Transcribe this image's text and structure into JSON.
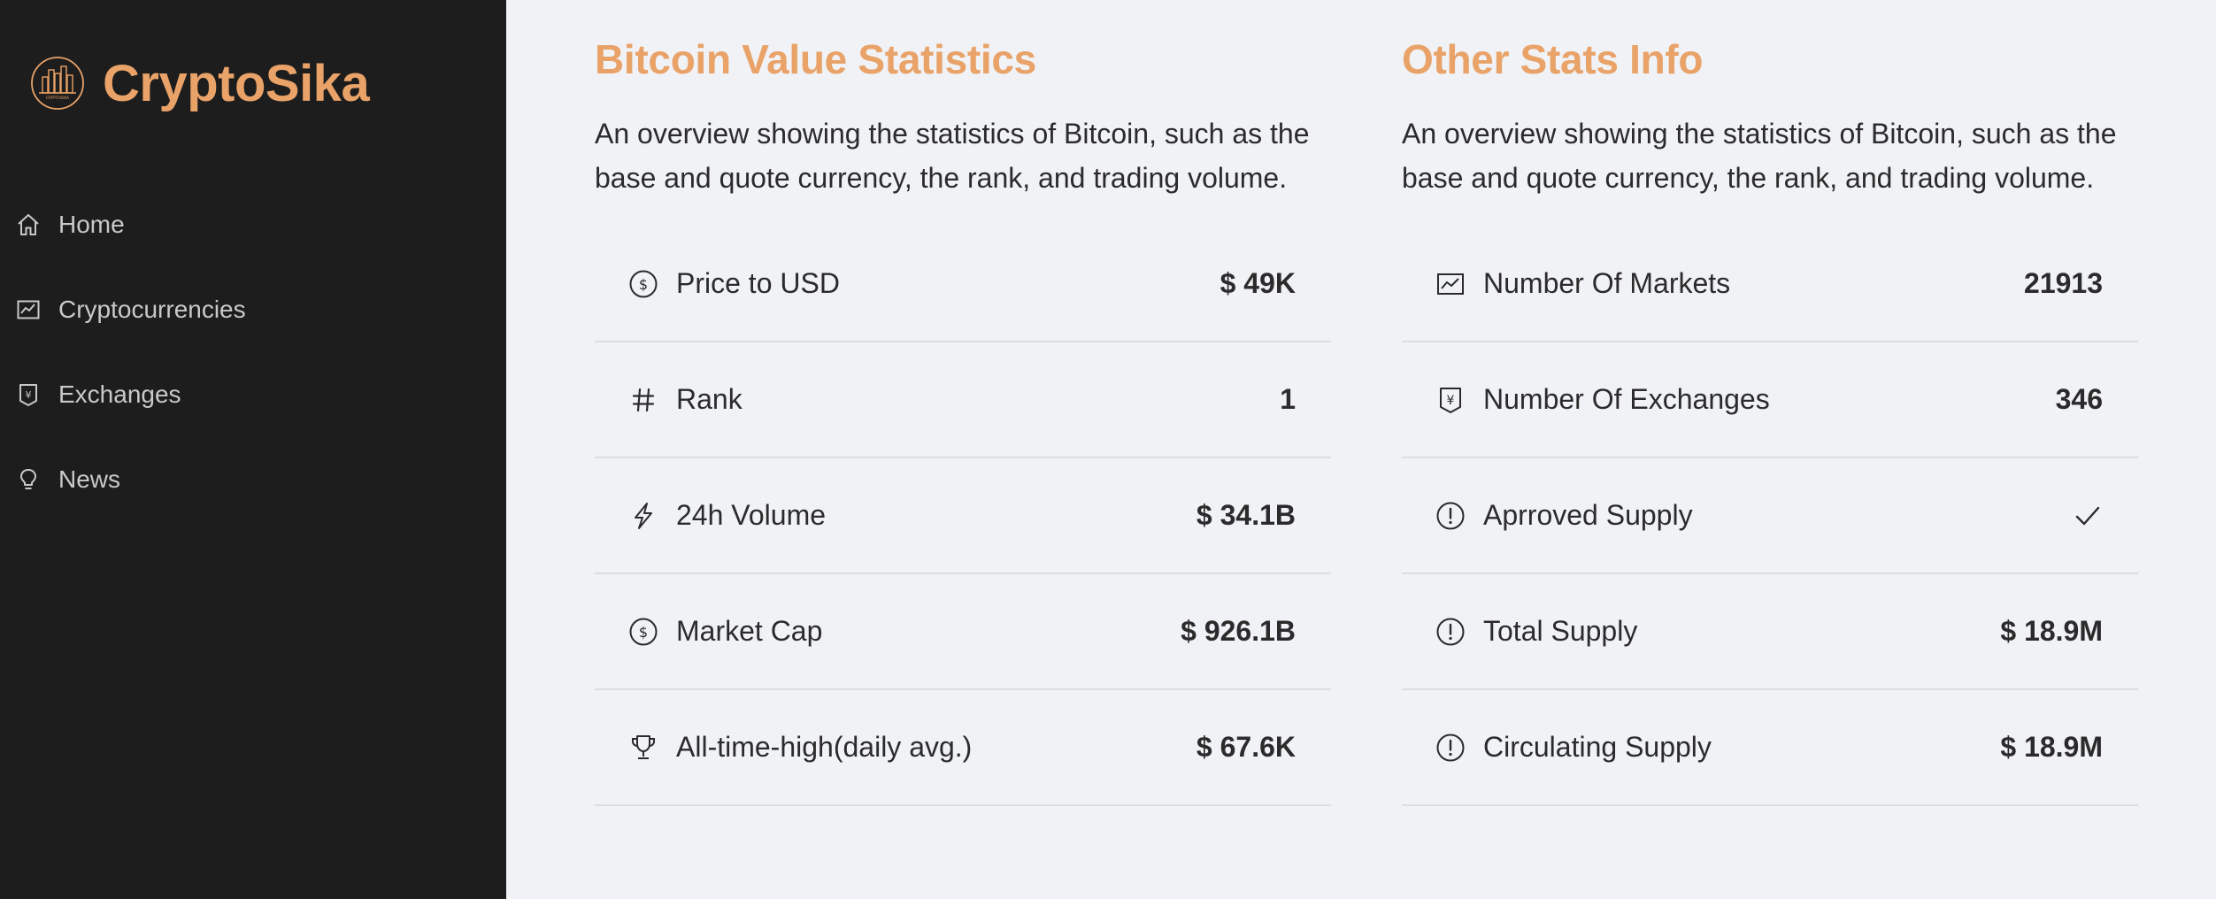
{
  "app": {
    "name": "CryptoSika",
    "logo_text": "CRYPTOSIKA",
    "accent_color": "#e9a268",
    "sidebar_bg": "#1d1d1d",
    "page_bg": "#f0f2f5"
  },
  "sidebar": {
    "items": [
      {
        "label": "Home",
        "icon": "home-icon"
      },
      {
        "label": "Cryptocurrencies",
        "icon": "line-chart-icon"
      },
      {
        "label": "Exchanges",
        "icon": "money-collect-icon"
      },
      {
        "label": "News",
        "icon": "bulb-icon"
      }
    ]
  },
  "value_stats": {
    "title": "Bitcoin Value Statistics",
    "description": "An overview showing the statistics of Bitcoin, such as the base and quote currency, the rank, and trading volume.",
    "rows": [
      {
        "label": "Price to USD",
        "value": "$ 49K",
        "icon": "dollar-circle-icon"
      },
      {
        "label": "Rank",
        "value": "1",
        "icon": "number-icon"
      },
      {
        "label": "24h Volume",
        "value": "$ 34.1B",
        "icon": "thunderbolt-icon"
      },
      {
        "label": "Market Cap",
        "value": "$ 926.1B",
        "icon": "dollar-circle-icon"
      },
      {
        "label": "All-time-high(daily avg.)",
        "value": "$ 67.6K",
        "icon": "trophy-icon"
      }
    ]
  },
  "other_stats": {
    "title": "Other Stats Info",
    "description": "An overview showing the statistics of Bitcoin, such as the base and quote currency, the rank, and trading volume.",
    "rows": [
      {
        "label": "Number Of Markets",
        "value": "21913",
        "icon": "fund-icon"
      },
      {
        "label": "Number Of Exchanges",
        "value": "346",
        "icon": "money-collect-icon"
      },
      {
        "label": "Aprroved Supply",
        "value": "",
        "value_icon": "check-icon",
        "icon": "exclamation-circle-icon"
      },
      {
        "label": "Total Supply",
        "value": "$ 18.9M",
        "icon": "exclamation-circle-icon"
      },
      {
        "label": "Circulating Supply",
        "value": "$ 18.9M",
        "icon": "exclamation-circle-icon"
      }
    ]
  }
}
